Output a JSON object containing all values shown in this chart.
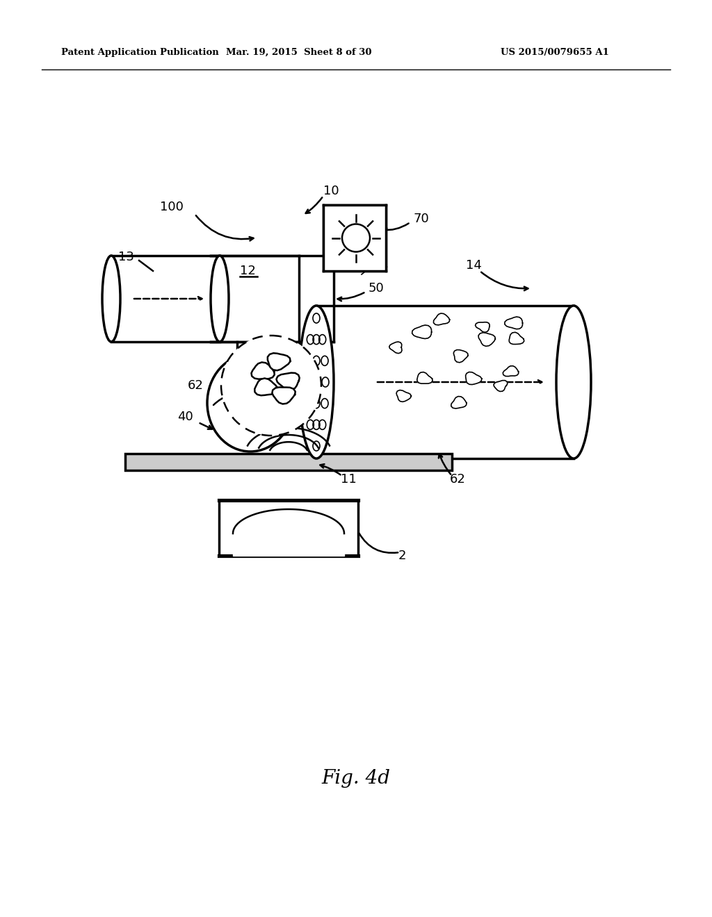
{
  "bg_color": "#ffffff",
  "line_color": "#000000",
  "header_left": "Patent Application Publication",
  "header_mid": "Mar. 19, 2015  Sheet 8 of 30",
  "header_right": "US 2015/0079655 A1",
  "fig_label": "Fig. 4d"
}
